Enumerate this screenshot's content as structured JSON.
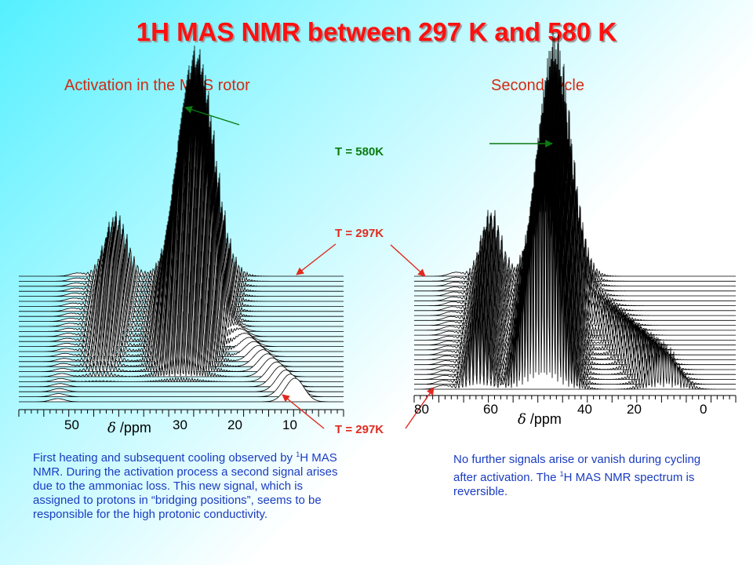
{
  "title": "1H MAS NMR between 297 K and 580 K",
  "left_panel": {
    "subtitle": "Activation in the MAS rotor",
    "ticks": [
      "50",
      "30",
      "20",
      "10"
    ],
    "axis_symbol": "δ",
    "axis_unit": "/ppm",
    "caption": {
      "pre": "First heating and subsequent cooling observed by ",
      "sup": "1",
      "post": "H MAS NMR. During the activation process a second signal arises due to the ammoniac loss. This new signal, which is assigned to protons in “bridging positions”, seems to be responsible for the high protonic conductivity."
    }
  },
  "right_panel": {
    "subtitle": "Second cycle",
    "ticks": [
      "80",
      "60",
      "40",
      "20",
      "0"
    ],
    "axis_symbol": "δ",
    "axis_unit": "/ppm",
    "caption": {
      "pre": "No further signals arise or vanish during cycling after activation. The ",
      "sup": "1",
      "post": "H MAS NMR spectrum is reversible."
    }
  },
  "labels": {
    "t_high": "T = 580K",
    "t_start": "T = 297K",
    "t_end": "T = 297K"
  },
  "colors": {
    "title": "#ff1010",
    "subtitle": "#d22a14",
    "high_temp": "#0b7a10",
    "low_temp": "#e02a1f",
    "caption": "#1a3cc0"
  }
}
